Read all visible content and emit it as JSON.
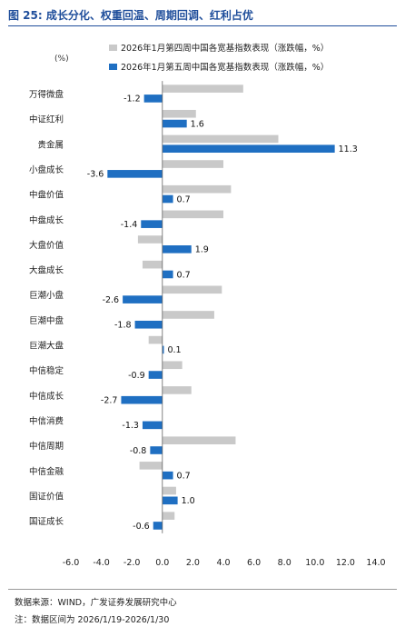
{
  "figure": {
    "title": "图 25:  成长分化、权重回温、周期回调、红利占优",
    "unit": "(%)",
    "source": "数据来源：WIND，广发证券发展研究中心",
    "note": "注：数据区间为 2026/1/19-2026/1/30"
  },
  "colors": {
    "grey_series": "#c9c9c9",
    "blue_series": "#1f6fc2",
    "title_blue": "#1f4e9b"
  },
  "chart_data": {
    "type": "bar",
    "orientation": "horizontal",
    "categories": [
      "万得微盘",
      "中证红利",
      "贵金属",
      "小盘成长",
      "中盘价值",
      "中盘成长",
      "大盘价值",
      "大盘成长",
      "巨潮小盘",
      "巨潮中盘",
      "巨潮大盘",
      "中信稳定",
      "中信成长",
      "中信消费",
      "中信周期",
      "中信金融",
      "国证价值",
      "国证成长"
    ],
    "series": [
      {
        "name": "2026年1月第四周中国各宽基指数表现（涨跌幅，%）",
        "values": [
          5.3,
          2.2,
          7.6,
          4.0,
          4.5,
          4.0,
          -1.6,
          -1.3,
          3.9,
          3.4,
          -0.9,
          1.3,
          1.9,
          0.0,
          4.8,
          -1.5,
          0.9,
          0.8
        ]
      },
      {
        "name": "2026年1月第五周中国各宽基指数表现（涨跌幅，%）",
        "values": [
          -1.2,
          1.6,
          11.3,
          -3.6,
          0.7,
          -1.4,
          1.9,
          0.7,
          -2.6,
          -1.8,
          0.1,
          -0.9,
          -2.7,
          -1.3,
          -0.8,
          0.7,
          1.0,
          -0.6
        ],
        "labels": [
          "-1.2",
          "1.6",
          "11.3",
          "-3.6",
          "0.7",
          "-1.4",
          "1.9",
          "0.7",
          "-2.6",
          "-1.8",
          "0.1",
          "-0.9",
          "-2.7",
          "-1.3",
          "-0.8",
          "0.7",
          "1.0",
          "-0.6"
        ]
      }
    ],
    "xlim": [
      -6.0,
      14.0
    ],
    "xticks": [
      "-6.0",
      "-4.0",
      "-2.0",
      "0.0",
      "2.0",
      "4.0",
      "6.0",
      "8.0",
      "10.0",
      "12.0",
      "14.0"
    ],
    "grid": false,
    "legend": "top"
  }
}
